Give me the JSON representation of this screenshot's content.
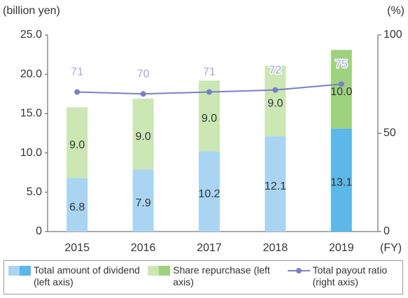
{
  "chart_data": {
    "type": "bar",
    "ylabel": "(billion yen)",
    "y2label": "(%)",
    "xunit": "(FY)",
    "categories": [
      "2015",
      "2016",
      "2017",
      "2018",
      "2019"
    ],
    "ylim": [
      0,
      25
    ],
    "yticks": [
      0,
      {
        "value": 5,
        "label": "5.0"
      },
      {
        "value": 10,
        "label": "10.0"
      },
      {
        "value": 15,
        "label": "15.0"
      },
      {
        "value": 20,
        "label": "20.0"
      },
      {
        "value": 25,
        "label": "25.0"
      }
    ],
    "y2lim": [
      0,
      100
    ],
    "y2ticks": [
      0,
      50,
      100
    ],
    "stacked": true,
    "series": [
      {
        "name": "Total amount of dividend (left axis)",
        "type": "bar",
        "colors": [
          "#a9d5f2",
          "#a9d5f2",
          "#a9d5f2",
          "#a9d5f2",
          "#5bb8e8"
        ],
        "values": [
          6.8,
          7.9,
          10.2,
          12.1,
          13.1
        ]
      },
      {
        "name": "Share repurchase (left axis)",
        "type": "bar",
        "colors": [
          "#cbe7b4",
          "#cbe7b4",
          "#cbe7b4",
          "#cbe7b4",
          "#9fd27e"
        ],
        "values": [
          9.0,
          9.0,
          9.0,
          9.0,
          10.0
        ],
        "value_labels": [
          "9.0",
          "9.0",
          "9.0",
          "9.0",
          "10.0"
        ]
      },
      {
        "name": "Total payout ratio (right axis)",
        "type": "line",
        "axis": "y2",
        "color": "#7a80c6",
        "label_color": "#a4a6da",
        "values": [
          71,
          70,
          71,
          72,
          75
        ]
      }
    ]
  }
}
